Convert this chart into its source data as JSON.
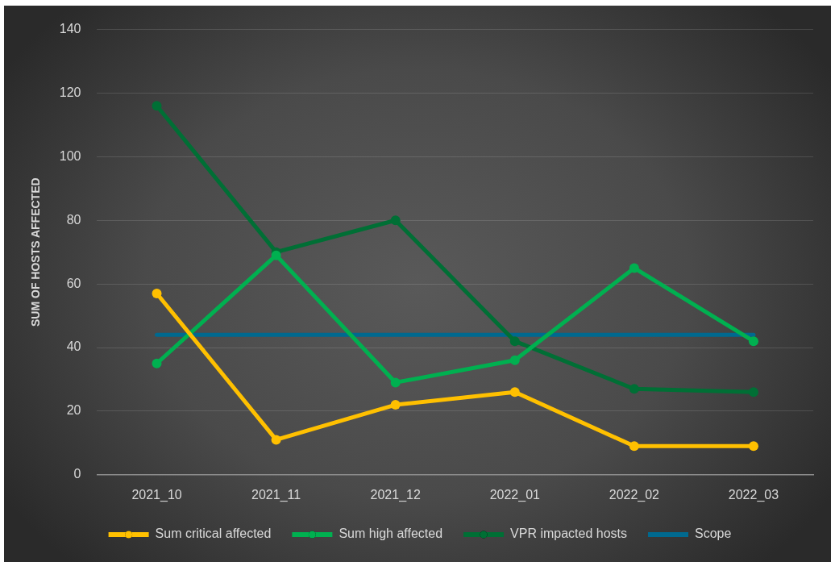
{
  "chart_data": {
    "type": "line",
    "ylabel": "SUM OF HOSTS AFFECTED",
    "categories": [
      "2021_10",
      "2021_11",
      "2021_12",
      "2022_01",
      "2022_02",
      "2022_03"
    ],
    "series": [
      {
        "name": "Sum critical affected",
        "color": "#ffc000",
        "values": [
          57,
          11,
          22,
          26,
          9,
          9
        ]
      },
      {
        "name": "Sum high affected",
        "color": "#00b050",
        "values": [
          35,
          69,
          29,
          36,
          65,
          42
        ]
      },
      {
        "name": "VPR impacted hosts",
        "color": "#006f35",
        "values": [
          116,
          70,
          80,
          42,
          27,
          26
        ]
      },
      {
        "name": "Scope",
        "color": "#00698f",
        "values": [
          44,
          44,
          44,
          44,
          44,
          44
        ],
        "marker": "none"
      }
    ],
    "ylim": [
      0,
      140
    ],
    "yticks": [
      0,
      20,
      40,
      60,
      80,
      100,
      120,
      140
    ],
    "grid": "y",
    "legend": "bottom",
    "marker": "circle",
    "line_style": "solid"
  }
}
